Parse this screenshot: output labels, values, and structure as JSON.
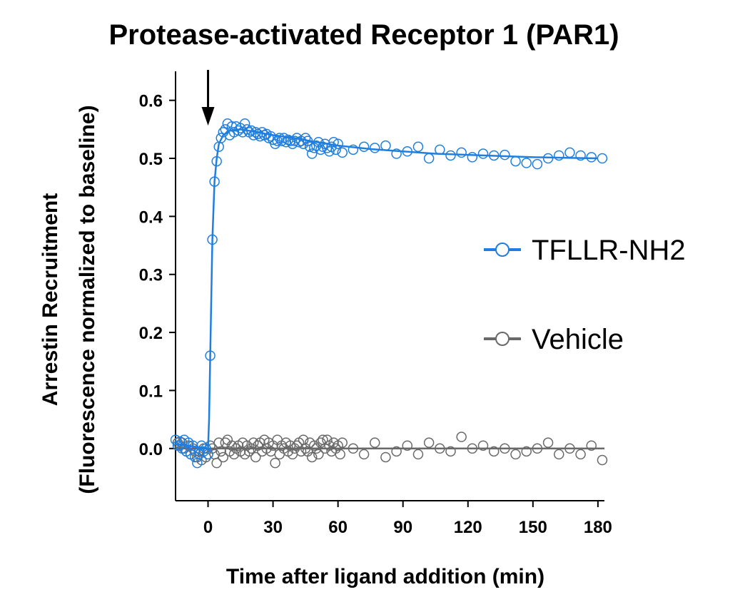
{
  "chart_data": {
    "type": "line",
    "title": "Protease-activated Receptor 1 (PAR1)",
    "xlabel": "Time after ligand addition (min)",
    "ylabel": "Arrestin Recruitment",
    "ylabel_sub": "(Fluorescence normalized to baseline)",
    "xlim": [
      -15,
      183
    ],
    "ylim": [
      -0.09,
      0.65
    ],
    "x_ticks": [
      0,
      30,
      60,
      90,
      120,
      150,
      180
    ],
    "x_tick_labels": [
      "0",
      "30",
      "60",
      "90",
      "120",
      "150",
      "180"
    ],
    "y_ticks": [
      0.0,
      0.1,
      0.2,
      0.3,
      0.4,
      0.5,
      0.6
    ],
    "y_tick_labels": [
      "0.0",
      "0.1",
      "0.2",
      "0.3",
      "0.4",
      "0.5",
      "0.6"
    ],
    "grid": false,
    "legend_position": "right",
    "annotation": {
      "type": "arrow",
      "x": 0,
      "meaning": "ligand addition"
    },
    "series": [
      {
        "name": "TFLLR-NH2",
        "color": "#1f7fe0",
        "marker": "open-circle",
        "fit_curve": [
          [
            -15,
            0.008
          ],
          [
            0,
            0.0
          ],
          [
            0.5,
            0.05
          ],
          [
            1,
            0.16
          ],
          [
            2,
            0.36
          ],
          [
            3,
            0.46
          ],
          [
            4,
            0.5
          ],
          [
            5,
            0.525
          ],
          [
            7,
            0.54
          ],
          [
            10,
            0.548
          ],
          [
            15,
            0.55
          ],
          [
            20,
            0.547
          ],
          [
            30,
            0.54
          ],
          [
            40,
            0.535
          ],
          [
            50,
            0.528
          ],
          [
            60,
            0.522
          ],
          [
            75,
            0.516
          ],
          [
            90,
            0.512
          ],
          [
            105,
            0.508
          ],
          [
            120,
            0.506
          ],
          [
            135,
            0.504
          ],
          [
            150,
            0.502
          ],
          [
            165,
            0.501
          ],
          [
            180,
            0.5
          ]
        ],
        "points": [
          [
            -15,
            0.015
          ],
          [
            -14,
            0.005
          ],
          [
            -13,
            0.012
          ],
          [
            -12,
            0.0
          ],
          [
            -11,
            0.015
          ],
          [
            -10,
            -0.005
          ],
          [
            -9,
            0.01
          ],
          [
            -8,
            -0.01
          ],
          [
            -7,
            0.005
          ],
          [
            -6,
            -0.015
          ],
          [
            -5,
            -0.025
          ],
          [
            -4,
            -0.01
          ],
          [
            -3,
            0.005
          ],
          [
            -2,
            -0.005
          ],
          [
            -1,
            0.0
          ],
          [
            0,
            -0.01
          ],
          [
            1,
            0.16
          ],
          [
            2,
            0.36
          ],
          [
            3,
            0.46
          ],
          [
            4,
            0.495
          ],
          [
            5,
            0.52
          ],
          [
            6,
            0.535
          ],
          [
            7,
            0.545
          ],
          [
            8,
            0.55
          ],
          [
            9,
            0.56
          ],
          [
            10,
            0.54
          ],
          [
            11,
            0.555
          ],
          [
            12,
            0.545
          ],
          [
            13,
            0.555
          ],
          [
            14,
            0.548
          ],
          [
            15,
            0.552
          ],
          [
            16,
            0.545
          ],
          [
            17,
            0.56
          ],
          [
            18,
            0.55
          ],
          [
            19,
            0.545
          ],
          [
            20,
            0.548
          ],
          [
            21,
            0.54
          ],
          [
            22,
            0.545
          ],
          [
            23,
            0.542
          ],
          [
            24,
            0.538
          ],
          [
            25,
            0.545
          ],
          [
            26,
            0.54
          ],
          [
            27,
            0.542
          ],
          [
            28,
            0.535
          ],
          [
            29,
            0.538
          ],
          [
            30,
            0.532
          ],
          [
            31,
            0.525
          ],
          [
            32,
            0.53
          ],
          [
            33,
            0.535
          ],
          [
            34,
            0.53
          ],
          [
            35,
            0.535
          ],
          [
            36,
            0.528
          ],
          [
            37,
            0.532
          ],
          [
            38,
            0.53
          ],
          [
            39,
            0.525
          ],
          [
            40,
            0.53
          ],
          [
            41,
            0.535
          ],
          [
            42,
            0.528
          ],
          [
            43,
            0.53
          ],
          [
            44,
            0.525
          ],
          [
            45,
            0.535
          ],
          [
            46,
            0.53
          ],
          [
            47,
            0.52
          ],
          [
            48,
            0.508
          ],
          [
            49,
            0.518
          ],
          [
            50,
            0.522
          ],
          [
            51,
            0.528
          ],
          [
            52,
            0.515
          ],
          [
            53,
            0.52
          ],
          [
            54,
            0.525
          ],
          [
            55,
            0.518
          ],
          [
            56,
            0.512
          ],
          [
            57,
            0.52
          ],
          [
            58,
            0.528
          ],
          [
            59,
            0.515
          ],
          [
            60,
            0.525
          ],
          [
            62,
            0.51
          ],
          [
            67,
            0.515
          ],
          [
            72,
            0.52
          ],
          [
            77,
            0.518
          ],
          [
            82,
            0.522
          ],
          [
            87,
            0.508
          ],
          [
            92,
            0.512
          ],
          [
            97,
            0.52
          ],
          [
            102,
            0.5
          ],
          [
            107,
            0.515
          ],
          [
            112,
            0.505
          ],
          [
            117,
            0.51
          ],
          [
            122,
            0.502
          ],
          [
            127,
            0.508
          ],
          [
            132,
            0.505
          ],
          [
            137,
            0.506
          ],
          [
            142,
            0.495
          ],
          [
            147,
            0.492
          ],
          [
            152,
            0.49
          ],
          [
            157,
            0.5
          ],
          [
            162,
            0.505
          ],
          [
            167,
            0.51
          ],
          [
            172,
            0.505
          ],
          [
            177,
            0.502
          ],
          [
            182,
            0.5
          ]
        ]
      },
      {
        "name": "Vehicle",
        "color": "#696969",
        "marker": "open-circle",
        "fit_curve": [
          [
            -15,
            0.0
          ],
          [
            183,
            0.0
          ]
        ],
        "points": [
          [
            -14,
            0.01
          ],
          [
            -13,
            0.005
          ],
          [
            -12,
            0.01
          ],
          [
            -11,
            0.0
          ],
          [
            -10,
            -0.005
          ],
          [
            -9,
            0.005
          ],
          [
            -8,
            -0.01
          ],
          [
            -7,
            0.0
          ],
          [
            -6,
            -0.005
          ],
          [
            -5,
            -0.015
          ],
          [
            -4,
            -0.005
          ],
          [
            -3,
            -0.02
          ],
          [
            -2,
            0.0
          ],
          [
            -1,
            -0.015
          ],
          [
            0,
            -0.01
          ],
          [
            1,
            0.005
          ],
          [
            2,
            0.0
          ],
          [
            3,
            -0.01
          ],
          [
            4,
            -0.025
          ],
          [
            5,
            0.01
          ],
          [
            6,
            -0.005
          ],
          [
            7,
            -0.015
          ],
          [
            8,
            0.01
          ],
          [
            9,
            0.015
          ],
          [
            10,
            -0.005
          ],
          [
            11,
            0.005
          ],
          [
            12,
            -0.01
          ],
          [
            13,
            0.0
          ],
          [
            14,
            0.005
          ],
          [
            15,
            -0.005
          ],
          [
            16,
            0.01
          ],
          [
            17,
            -0.01
          ],
          [
            18,
            0.005
          ],
          [
            19,
            -0.005
          ],
          [
            20,
            0.0
          ],
          [
            21,
            0.01
          ],
          [
            22,
            -0.015
          ],
          [
            23,
            0.005
          ],
          [
            24,
            0.01
          ],
          [
            25,
            -0.005
          ],
          [
            26,
            0.015
          ],
          [
            27,
            0.0
          ],
          [
            28,
            0.01
          ],
          [
            29,
            -0.005
          ],
          [
            30,
            0.005
          ],
          [
            31,
            -0.025
          ],
          [
            32,
            0.015
          ],
          [
            33,
            -0.01
          ],
          [
            34,
            0.005
          ],
          [
            35,
            0.0
          ],
          [
            36,
            0.01
          ],
          [
            37,
            -0.005
          ],
          [
            38,
            0.005
          ],
          [
            39,
            -0.01
          ],
          [
            40,
            0.0
          ],
          [
            41,
            0.005
          ],
          [
            42,
            0.01
          ],
          [
            43,
            -0.005
          ],
          [
            44,
            0.015
          ],
          [
            45,
            0.0
          ],
          [
            46,
            -0.005
          ],
          [
            47,
            0.01
          ],
          [
            48,
            -0.015
          ],
          [
            49,
            0.005
          ],
          [
            50,
            0.0
          ],
          [
            51,
            -0.01
          ],
          [
            52,
            0.01
          ],
          [
            53,
            0.015
          ],
          [
            54,
            0.0
          ],
          [
            55,
            0.015
          ],
          [
            56,
            0.005
          ],
          [
            57,
            -0.005
          ],
          [
            58,
            0.01
          ],
          [
            59,
            0.0
          ],
          [
            60,
            0.005
          ],
          [
            61,
            -0.01
          ],
          [
            62,
            0.01
          ],
          [
            67,
            0.0
          ],
          [
            72,
            -0.01
          ],
          [
            77,
            0.01
          ],
          [
            82,
            -0.015
          ],
          [
            87,
            -0.005
          ],
          [
            92,
            0.005
          ],
          [
            97,
            -0.01
          ],
          [
            102,
            0.01
          ],
          [
            107,
            0.0
          ],
          [
            112,
            -0.005
          ],
          [
            117,
            0.02
          ],
          [
            122,
            0.0
          ],
          [
            127,
            0.005
          ],
          [
            132,
            -0.005
          ],
          [
            137,
            0.0
          ],
          [
            142,
            -0.01
          ],
          [
            147,
            -0.005
          ],
          [
            152,
            0.0
          ],
          [
            157,
            0.01
          ],
          [
            162,
            -0.01
          ],
          [
            167,
            0.0
          ],
          [
            172,
            -0.01
          ],
          [
            177,
            0.005
          ],
          [
            182,
            -0.02
          ]
        ]
      }
    ]
  }
}
